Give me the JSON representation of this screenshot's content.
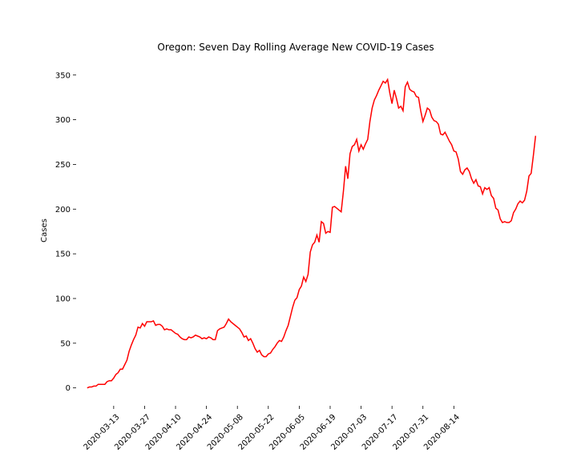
{
  "chart_data": {
    "type": "line",
    "title": "Oregon: Seven Day Rolling Average New COVID-19 Cases",
    "xlabel": "",
    "ylabel": "Cases",
    "x_start": "2020-03-01",
    "x_ticks": [
      "2020-03-13",
      "2020-03-27",
      "2020-04-10",
      "2020-04-24",
      "2020-05-08",
      "2020-05-22",
      "2020-06-05",
      "2020-06-19",
      "2020-07-03",
      "2020-07-17",
      "2020-07-31",
      "2020-08-14"
    ],
    "xlim": [
      "2020-02-25",
      "2020-09-09"
    ],
    "ylim": [
      -20,
      365
    ],
    "y_ticks": [
      0,
      50,
      100,
      150,
      200,
      250,
      300,
      350
    ],
    "grid": false,
    "color": "#ff0000",
    "series": [
      {
        "values": [
          0,
          1,
          1,
          2,
          2,
          4,
          4,
          4,
          4,
          7,
          8,
          8,
          11,
          15,
          17,
          21,
          21,
          26,
          31,
          41,
          48,
          54,
          59,
          68,
          67,
          72,
          69,
          74,
          74,
          74,
          75,
          70,
          71,
          71,
          69,
          65,
          66,
          65,
          65,
          63,
          61,
          60,
          57,
          55,
          54,
          54,
          57,
          56,
          57,
          59,
          58,
          57,
          55,
          56,
          55,
          57,
          56,
          54,
          54,
          64,
          66,
          67,
          68,
          72,
          77,
          74,
          72,
          70,
          68,
          66,
          62,
          57,
          58,
          53,
          55,
          50,
          44,
          40,
          42,
          37,
          35,
          35,
          38,
          39,
          43,
          46,
          50,
          53,
          52,
          57,
          64,
          70,
          80,
          90,
          98,
          101,
          110,
          114,
          124,
          119,
          127,
          152,
          160,
          163,
          171,
          163,
          186,
          184,
          173,
          175,
          174,
          202,
          203,
          201,
          199,
          197,
          220,
          248,
          234,
          262,
          270,
          272,
          278,
          265,
          272,
          267,
          273,
          278,
          298,
          313,
          322,
          327,
          333,
          338,
          343,
          341,
          345,
          330,
          318,
          333,
          324,
          313,
          315,
          310,
          337,
          342,
          334,
          332,
          331,
          326,
          325,
          310,
          298,
          305,
          313,
          311,
          303,
          299,
          298,
          295,
          284,
          283,
          286,
          281,
          276,
          272,
          265,
          264,
          256,
          242,
          239,
          244,
          246,
          242,
          234,
          229,
          233,
          226,
          225,
          217,
          224,
          222,
          224,
          215,
          212,
          201,
          199,
          189,
          185,
          186,
          185,
          185,
          187,
          196,
          200,
          206,
          209,
          207,
          210,
          220,
          237,
          240,
          260,
          282
        ]
      }
    ]
  }
}
